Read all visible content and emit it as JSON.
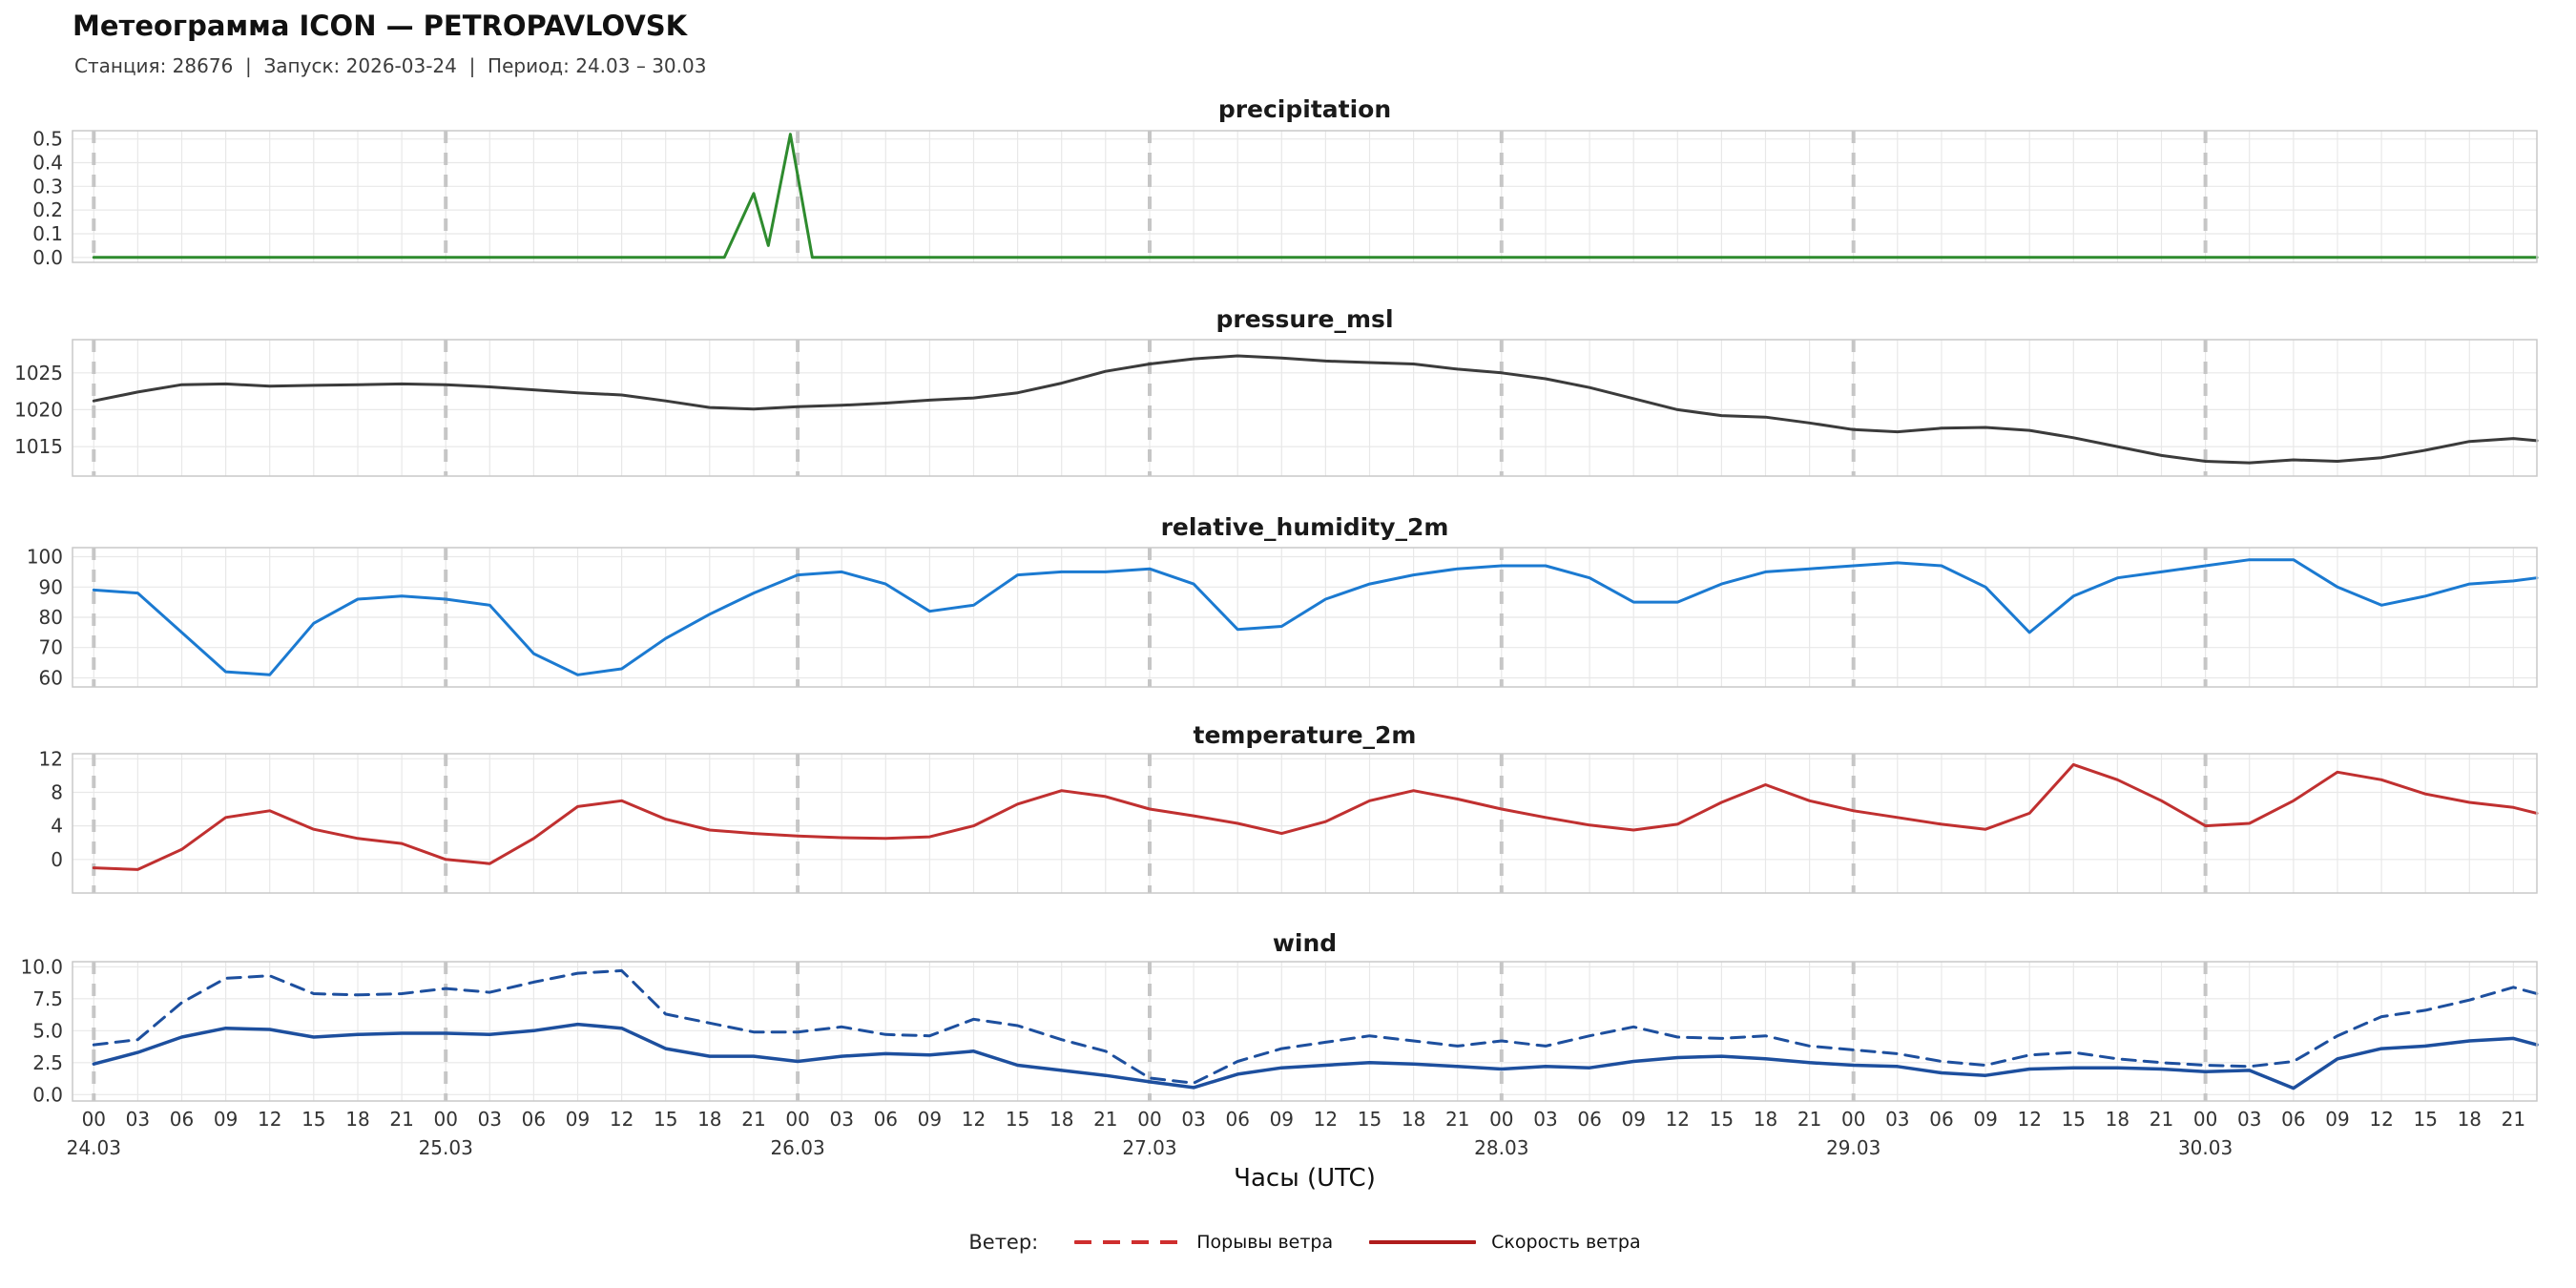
{
  "header": {
    "title": "Метеограмма ICON — PETROPAVLOVSK",
    "subtitle": "Станция: 28676  |  Запуск: 2026-03-24  |  Период: 24.03 – 30.03"
  },
  "x_axis": {
    "domain": [
      -1.45,
      166.6
    ],
    "tick_step": 3,
    "tick_end": 165,
    "hour_labels": [
      "00",
      "03",
      "06",
      "09",
      "12",
      "15",
      "18",
      "21"
    ],
    "day_labels": [
      "24.03",
      "25.03",
      "26.03",
      "27.03",
      "28.03",
      "29.03",
      "30.03"
    ],
    "day_starts": [
      0,
      24,
      48,
      72,
      96,
      120,
      144
    ],
    "xlabel": "Часы (UTC)"
  },
  "legend": {
    "label": "Ветер:",
    "items": [
      {
        "name": "Порывы ветра",
        "style": "dashed",
        "color": "#cf2e2e"
      },
      {
        "name": "Скорость ветра",
        "style": "solid",
        "color": "#b01c1c"
      }
    ]
  },
  "colors": {
    "precipitation": "#2e8b2e",
    "pressure": "#3b3b3b",
    "humidity": "#1b7ad1",
    "temperature": "#c03030",
    "wind": "#1d4f9e",
    "grid": "#e8e8e8",
    "day_line": "#c6c6c6",
    "border": "#c9c9c9"
  },
  "chart_data": [
    {
      "type": "line",
      "title": "precipitation",
      "ylim": [
        -0.021,
        0.535
      ],
      "yticks": [
        0,
        0.1,
        0.2,
        0.3,
        0.4,
        0.5
      ],
      "ytick_labels": [
        "0.0",
        "0.1",
        "0.2",
        "0.3",
        "0.4",
        "0.5"
      ],
      "series": [
        {
          "id": "precipitation",
          "name": "precipitation",
          "color": "#2e8b2e",
          "width": 3,
          "x": [
            0,
            43,
            45,
            46,
            47.5,
            49,
            168
          ],
          "values": [
            0,
            0,
            0.27,
            0.05,
            0.52,
            0,
            0
          ]
        }
      ]
    },
    {
      "type": "line",
      "title": "pressure_msl",
      "ylim": [
        1011,
        1029.5
      ],
      "yticks": [
        1015,
        1020,
        1025
      ],
      "ytick_labels": [
        "1015",
        "1020",
        "1025"
      ],
      "series": [
        {
          "id": "pressure_msl",
          "name": "pressure_msl",
          "color": "#3b3b3b",
          "width": 3,
          "x_start": 0,
          "x_step": 3,
          "values": [
            1021.2,
            1022.4,
            1023.4,
            1023.5,
            1023.2,
            1023.3,
            1023.4,
            1023.5,
            1023.4,
            1023.1,
            1022.7,
            1022.3,
            1022.0,
            1021.2,
            1020.3,
            1020.1,
            1020.4,
            1020.6,
            1020.9,
            1021.3,
            1021.6,
            1022.3,
            1023.6,
            1025.2,
            1026.2,
            1026.9,
            1027.3,
            1027.0,
            1026.6,
            1026.4,
            1026.2,
            1025.5,
            1025.0,
            1024.2,
            1023.0,
            1021.5,
            1020.0,
            1019.2,
            1019.0,
            1018.2,
            1017.3,
            1017.0,
            1017.5,
            1017.6,
            1017.2,
            1016.2,
            1015.0,
            1013.8,
            1013.0,
            1012.8,
            1013.2,
            1013.0,
            1013.5,
            1014.5,
            1015.7,
            1016.1,
            1015.8
          ]
        }
      ]
    },
    {
      "type": "line",
      "title": "relative_humidity_2m",
      "ylim": [
        57,
        103
      ],
      "yticks": [
        60,
        70,
        80,
        90,
        100
      ],
      "ytick_labels": [
        "60",
        "70",
        "80",
        "90",
        "100"
      ],
      "series": [
        {
          "id": "relative_humidity_2m",
          "name": "relative_humidity_2m",
          "color": "#1b7ad1",
          "width": 3,
          "x_start": 0,
          "x_step": 3,
          "values": [
            89,
            88,
            75,
            62,
            61,
            78,
            86,
            87,
            86,
            84,
            68,
            61,
            63,
            73,
            81,
            88,
            94,
            95,
            91,
            82,
            84,
            94,
            95,
            95,
            96,
            91,
            76,
            77,
            86,
            91,
            94,
            96,
            97,
            97,
            93,
            85,
            85,
            91,
            95,
            96,
            97,
            98,
            97,
            90,
            75,
            87,
            93,
            95,
            97,
            99,
            99,
            90,
            84,
            87,
            91,
            92,
            93
          ]
        }
      ]
    },
    {
      "type": "line",
      "title": "temperature_2m",
      "ylim": [
        -4,
        12.6
      ],
      "yticks": [
        0,
        4,
        8,
        12
      ],
      "ytick_labels": [
        "0",
        "4",
        "8",
        "12"
      ],
      "series": [
        {
          "id": "temperature_2m",
          "name": "temperature_2m",
          "color": "#c03030",
          "width": 3,
          "x_start": 0,
          "x_step": 3,
          "values": [
            -1.0,
            -1.2,
            1.2,
            5.0,
            5.8,
            3.6,
            2.5,
            1.9,
            0.0,
            -0.5,
            2.5,
            6.3,
            7.0,
            4.8,
            3.5,
            3.1,
            2.8,
            2.6,
            2.5,
            2.7,
            4.0,
            6.6,
            8.2,
            7.5,
            6.0,
            5.2,
            4.3,
            3.1,
            4.5,
            7.0,
            8.2,
            7.2,
            6.0,
            5.0,
            4.1,
            3.5,
            4.2,
            6.8,
            8.9,
            7.0,
            5.8,
            5.0,
            4.2,
            3.6,
            5.5,
            11.3,
            9.5,
            7.0,
            4.0,
            4.3,
            7.0,
            10.4,
            9.5,
            7.8,
            6.8,
            6.2,
            5.5
          ]
        }
      ]
    },
    {
      "type": "line",
      "title": "wind",
      "ylim": [
        -0.5,
        10.4
      ],
      "yticks": [
        0,
        2.5,
        5,
        7.5,
        10
      ],
      "ytick_labels": [
        "0.0",
        "2.5",
        "5.0",
        "7.5",
        "10.0"
      ],
      "series": [
        {
          "id": "wind_gusts",
          "name": "Порывы ветра",
          "color": "#1d4f9e",
          "width": 3,
          "dash": "14 9",
          "x_start": 0,
          "x_step": 3,
          "values": [
            3.9,
            4.3,
            7.2,
            9.1,
            9.3,
            7.9,
            7.8,
            7.9,
            8.3,
            8.0,
            8.8,
            9.5,
            9.7,
            6.3,
            5.6,
            4.9,
            4.9,
            5.3,
            4.7,
            4.6,
            5.9,
            5.4,
            4.3,
            3.4,
            1.3,
            0.9,
            2.6,
            3.6,
            4.1,
            4.6,
            4.2,
            3.8,
            4.2,
            3.8,
            4.6,
            5.3,
            4.5,
            4.4,
            4.6,
            3.8,
            3.5,
            3.2,
            2.6,
            2.3,
            3.1,
            3.3,
            2.8,
            2.5,
            2.3,
            2.2,
            2.6,
            4.6,
            6.1,
            6.6,
            7.4,
            8.4,
            7.9
          ]
        },
        {
          "id": "wind_speed",
          "name": "Скорость ветра",
          "color": "#1d4f9e",
          "width": 3.5,
          "x_start": 0,
          "x_step": 3,
          "values": [
            2.4,
            3.3,
            4.5,
            5.2,
            5.1,
            4.5,
            4.7,
            4.8,
            4.8,
            4.7,
            5.0,
            5.5,
            5.2,
            3.6,
            3.0,
            3.0,
            2.6,
            3.0,
            3.2,
            3.1,
            3.4,
            2.3,
            1.9,
            1.5,
            1.0,
            0.55,
            1.6,
            2.1,
            2.3,
            2.5,
            2.4,
            2.2,
            2.0,
            2.2,
            2.1,
            2.6,
            2.9,
            3.0,
            2.8,
            2.5,
            2.3,
            2.2,
            1.7,
            1.5,
            2.0,
            2.1,
            2.1,
            2.0,
            1.8,
            1.9,
            0.5,
            2.8,
            3.6,
            3.8,
            4.2,
            4.4,
            3.9
          ]
        }
      ]
    }
  ]
}
